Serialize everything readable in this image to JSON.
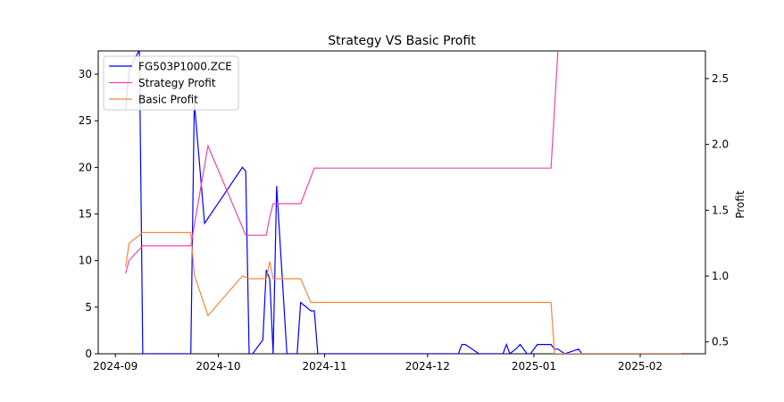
{
  "chart_data": {
    "type": "line",
    "title": "Strategy VS Basic Profit",
    "xlabel": "",
    "ylabel_left": "",
    "ylabel_right": "Profit",
    "x_ticks": [
      "2024-09",
      "2024-10",
      "2024-11",
      "2024-12",
      "2025-01",
      "2025-02"
    ],
    "ylim_left": [
      0,
      32.5
    ],
    "yticks_left": [
      0,
      5,
      10,
      15,
      20,
      25,
      30
    ],
    "ylim_right": [
      0.41,
      2.71
    ],
    "yticks_right": [
      0.5,
      1.0,
      1.5,
      2.0,
      2.5
    ],
    "grid": false,
    "legend_position": "upper-left",
    "series": [
      {
        "name": "FG503P1000.ZCE",
        "axis": "left",
        "color": "#0000ff",
        "points": [
          [
            "2024-09-04",
            26.2
          ],
          [
            "2024-09-05",
            30.5
          ],
          [
            "2024-09-08",
            32.6
          ],
          [
            "2024-09-09",
            0.0
          ],
          [
            "2024-09-23",
            0.0
          ],
          [
            "2024-09-24",
            27.0
          ],
          [
            "2024-09-27",
            14.0
          ],
          [
            "2024-10-08",
            20.0
          ],
          [
            "2024-10-09",
            19.6
          ],
          [
            "2024-10-10",
            0.0
          ],
          [
            "2024-10-11",
            0.0
          ],
          [
            "2024-10-14",
            1.5
          ],
          [
            "2024-10-15",
            9.0
          ],
          [
            "2024-10-16",
            8.0
          ],
          [
            "2024-10-17",
            0.0
          ],
          [
            "2024-10-18",
            18.0
          ],
          [
            "2024-10-21",
            0.0
          ],
          [
            "2024-10-24",
            0.0
          ],
          [
            "2024-10-25",
            5.5
          ],
          [
            "2024-10-28",
            4.6
          ],
          [
            "2024-10-29",
            4.6
          ],
          [
            "2024-10-30",
            0.0
          ],
          [
            "2024-12-10",
            0.0
          ],
          [
            "2024-12-11",
            1.0
          ],
          [
            "2024-12-12",
            1.0
          ],
          [
            "2024-12-16",
            0.0
          ],
          [
            "2024-12-23",
            0.0
          ],
          [
            "2024-12-24",
            1.0
          ],
          [
            "2024-12-25",
            0.0
          ],
          [
            "2024-12-27",
            0.6
          ],
          [
            "2024-12-28",
            1.0
          ],
          [
            "2024-12-30",
            0.0
          ],
          [
            "2024-12-31",
            0.0
          ],
          [
            "2025-01-02",
            1.0
          ],
          [
            "2025-01-06",
            1.0
          ],
          [
            "2025-01-07",
            0.5
          ],
          [
            "2025-01-08",
            0.5
          ],
          [
            "2025-01-10",
            0.0
          ],
          [
            "2025-01-14",
            0.5
          ],
          [
            "2025-01-15",
            0.0
          ],
          [
            "2025-02-13",
            0.0
          ]
        ]
      },
      {
        "name": "Strategy Profit",
        "axis": "right",
        "color": "#f044aa",
        "points": [
          [
            "2024-09-04",
            1.02
          ],
          [
            "2024-09-05",
            1.12
          ],
          [
            "2024-09-09",
            1.23
          ],
          [
            "2024-09-23",
            1.23
          ],
          [
            "2024-09-28",
            1.99
          ],
          [
            "2024-10-09",
            1.31
          ],
          [
            "2024-10-15",
            1.31
          ],
          [
            "2024-10-16",
            1.45
          ],
          [
            "2024-10-17",
            1.55
          ],
          [
            "2024-10-25",
            1.55
          ],
          [
            "2024-10-29",
            1.82
          ],
          [
            "2025-01-06",
            1.82
          ],
          [
            "2025-01-08",
            2.71
          ]
        ]
      },
      {
        "name": "Basic Profit",
        "axis": "right",
        "color": "#f5883a",
        "points": [
          [
            "2024-09-04",
            1.07
          ],
          [
            "2024-09-05",
            1.25
          ],
          [
            "2024-09-09",
            1.33
          ],
          [
            "2024-09-23",
            1.33
          ],
          [
            "2024-09-24",
            1.01
          ],
          [
            "2024-09-28",
            0.7
          ],
          [
            "2024-10-08",
            1.0
          ],
          [
            "2024-10-10",
            0.98
          ],
          [
            "2024-10-15",
            0.98
          ],
          [
            "2024-10-16",
            1.11
          ],
          [
            "2024-10-17",
            0.98
          ],
          [
            "2024-10-25",
            0.98
          ],
          [
            "2024-10-28",
            0.8
          ],
          [
            "2025-01-06",
            0.8
          ],
          [
            "2025-01-07",
            0.41
          ],
          [
            "2025-02-13",
            0.41
          ]
        ]
      }
    ]
  }
}
